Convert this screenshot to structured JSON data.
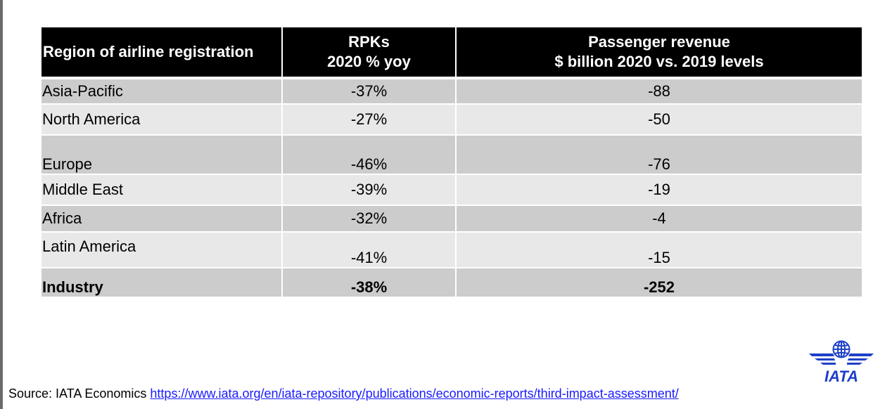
{
  "table": {
    "headers": {
      "region": "Region of  airline registration",
      "rpk_line1": "RPKs",
      "rpk_line2": "2020 % yoy",
      "rev_line1": "Passenger revenue",
      "rev_line2": "$ billion 2020 vs. 2019 levels"
    },
    "rows": [
      {
        "region": "Asia-Pacific",
        "rpk": "-37%",
        "revenue": "-88"
      },
      {
        "region": "North America",
        "rpk": "-27%",
        "revenue": "-50"
      },
      {
        "region": "Europe",
        "rpk": "-46%",
        "revenue": "-76"
      },
      {
        "region": "Middle East",
        "rpk": "-39%",
        "revenue": "-19"
      },
      {
        "region": "Africa",
        "rpk": "-32%",
        "revenue": "-4"
      },
      {
        "region": "Latin America",
        "rpk": "-41%",
        "revenue": "-15"
      },
      {
        "region": "Industry",
        "rpk": "-38%",
        "revenue": "-252"
      }
    ]
  },
  "footer": {
    "source_label": "Source: IATA Economics ",
    "source_link": "https://www.iata.org/en/iata-repository/publications/economic-reports/third-impact-assessment/"
  },
  "logo": {
    "text": "IATA",
    "icon": "iata-globe-logo",
    "color": "#1e40c8"
  },
  "colors": {
    "header_bg": "#000000",
    "row_dark": "#cccccc",
    "row_light": "#e8e8e8",
    "link": "#1a1aff"
  }
}
